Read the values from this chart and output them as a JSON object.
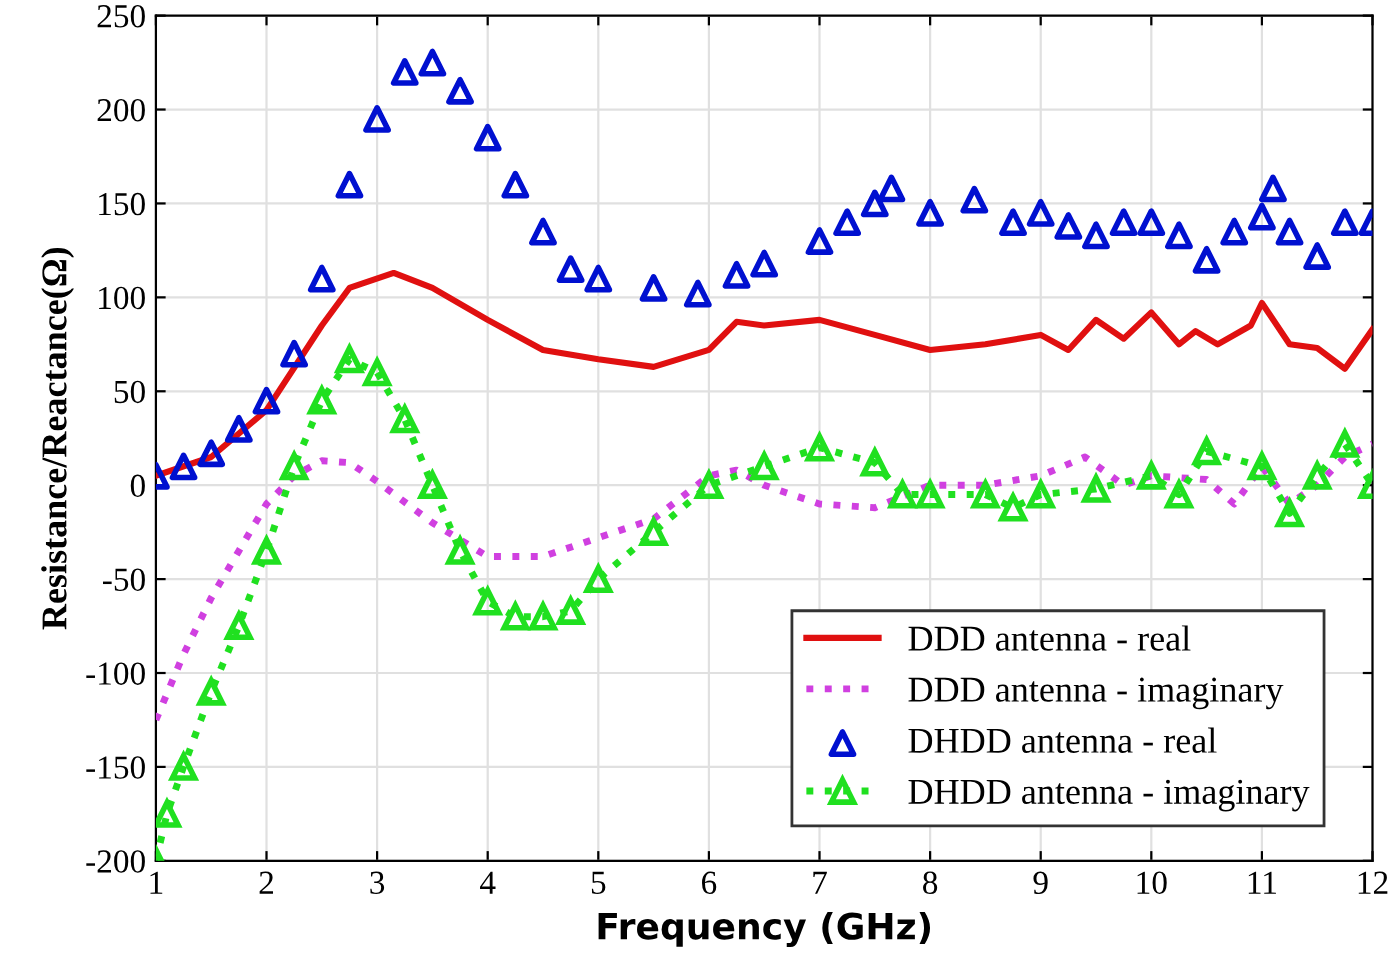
{
  "chart_data": {
    "type": "line",
    "xlabel": "Frequency (GHz)",
    "ylabel": "Resistance/Reactance(Ω)",
    "xlim": [
      1,
      12
    ],
    "xticks": [
      1,
      2,
      3,
      4,
      5,
      6,
      7,
      8,
      9,
      10,
      11,
      12
    ],
    "ylim": [
      -200,
      250
    ],
    "yticks": [
      -200,
      -150,
      -100,
      -50,
      0,
      50,
      100,
      150,
      200,
      250
    ],
    "grid": true,
    "legend": "bottom right",
    "series": [
      {
        "name": "DDD antenna - real",
        "color": "#e01010",
        "marker": "none",
        "line_style": "solid",
        "x": [
          1,
          1.5,
          2,
          2.5,
          2.75,
          3.15,
          3.5,
          4,
          4.5,
          5,
          5.5,
          6,
          6.25,
          6.5,
          7,
          7.5,
          8,
          8.5,
          9,
          9.25,
          9.5,
          9.75,
          10,
          10.25,
          10.4,
          10.6,
          10.9,
          11,
          11.25,
          11.5,
          11.75,
          12
        ],
        "values": [
          5,
          15,
          40,
          85,
          105,
          113,
          105,
          88,
          72,
          67,
          63,
          72,
          87,
          85,
          88,
          80,
          72,
          75,
          80,
          72,
          88,
          78,
          92,
          75,
          82,
          75,
          85,
          97,
          75,
          73,
          62,
          83
        ]
      },
      {
        "name": "DDD antenna - imaginary",
        "color": "#d040e0",
        "marker": "none",
        "line_style": "dotted",
        "x": [
          1,
          1.25,
          1.5,
          1.75,
          2,
          2.25,
          2.5,
          2.75,
          3,
          3.5,
          4,
          4.5,
          5,
          5.5,
          6,
          6.25,
          6.5,
          7,
          7.5,
          8,
          8.5,
          9,
          9.4,
          9.75,
          10,
          10.5,
          10.75,
          11,
          11.25,
          11.5,
          11.75,
          12
        ],
        "values": [
          -125,
          -90,
          -60,
          -35,
          -10,
          5,
          13,
          12,
          2,
          -20,
          -38,
          -38,
          -28,
          -18,
          5,
          8,
          0,
          -10,
          -12,
          0,
          0,
          5,
          15,
          0,
          5,
          3,
          -10,
          10,
          -10,
          0,
          15,
          22
        ]
      },
      {
        "name": "DHDD antenna - real",
        "type": "scatter",
        "color": "#0010d0",
        "marker": "triangle",
        "x": [
          1,
          1.25,
          1.5,
          1.75,
          2,
          2.25,
          2.5,
          2.75,
          3,
          3.25,
          3.5,
          3.75,
          4,
          4.25,
          4.5,
          4.75,
          5,
          5.5,
          5.9,
          6.25,
          6.5,
          7,
          7.25,
          7.5,
          7.65,
          8,
          8.4,
          8.75,
          9,
          9.25,
          9.5,
          9.75,
          10,
          10.25,
          10.5,
          10.75,
          11,
          11.1,
          11.25,
          11.5,
          11.75,
          12
        ],
        "values": [
          5,
          10,
          17,
          30,
          45,
          70,
          110,
          160,
          195,
          220,
          225,
          210,
          185,
          160,
          135,
          115,
          110,
          105,
          102,
          112,
          118,
          130,
          140,
          150,
          158,
          145,
          152,
          140,
          145,
          138,
          133,
          140,
          140,
          133,
          120,
          135,
          143,
          158,
          135,
          122,
          140,
          140
        ]
      },
      {
        "name": "DHDD antenna - imaginary",
        "color": "#20e020",
        "marker": "triangle",
        "line_style": "dotted",
        "x": [
          1,
          1.1,
          1.25,
          1.5,
          1.75,
          2,
          2.25,
          2.5,
          2.75,
          3,
          3.25,
          3.5,
          3.75,
          4,
          4.25,
          4.5,
          4.75,
          5,
          5.5,
          6,
          6.5,
          7,
          7.5,
          7.75,
          8,
          8.5,
          8.75,
          9,
          9.5,
          10,
          10.25,
          10.5,
          11,
          11.25,
          11.5,
          11.75,
          12
        ],
        "values": [
          -200,
          -175,
          -150,
          -110,
          -75,
          -35,
          10,
          45,
          67,
          60,
          35,
          0,
          -35,
          -62,
          -70,
          -70,
          -67,
          -50,
          -25,
          0,
          10,
          20,
          12,
          -5,
          -5,
          -5,
          -12,
          -5,
          -2,
          5,
          -5,
          18,
          10,
          -15,
          5,
          22,
          0
        ]
      }
    ]
  }
}
